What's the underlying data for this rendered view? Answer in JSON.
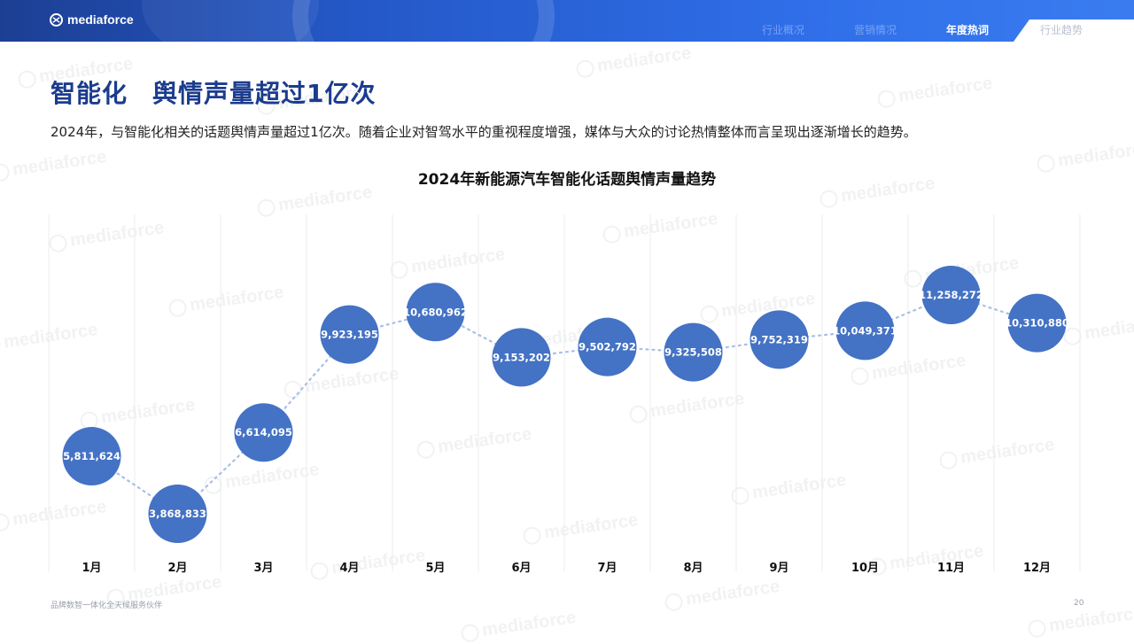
{
  "brand": {
    "logo_text": "mediaforce"
  },
  "nav": {
    "items": [
      {
        "label": "行业概况"
      },
      {
        "label": "营销情况"
      },
      {
        "label": "年度热词"
      },
      {
        "label": "行业趋势"
      }
    ],
    "active_index": 2
  },
  "page": {
    "title_part1": "智能化",
    "title_part2": "舆情声量超过1亿次",
    "subtitle": "2024年，与智能化相关的话题舆情声量超过1亿次。随着企业对智驾水平的重视程度增强，媒体与大众的讨论热情整体而言呈现出逐渐增长的趋势。"
  },
  "chart_data": {
    "type": "line",
    "title": "2024年新能源汽车智能化话题舆情声量趋势",
    "categories": [
      "1月",
      "2月",
      "3月",
      "4月",
      "5月",
      "6月",
      "7月",
      "8月",
      "9月",
      "10月",
      "11月",
      "12月"
    ],
    "values": [
      5811624,
      3868833,
      6614095,
      9923195,
      10680962,
      9153202,
      9502792,
      9325508,
      9752319,
      10049371,
      11258272,
      10310880
    ],
    "value_labels": [
      "5,811,624",
      "3,868,833",
      "6,614,095",
      "9,923,195",
      "10,680,962",
      "9,153,202",
      "9,502,792",
      "9,325,508",
      "9,752,319",
      "10,049,371",
      "11,258,272",
      "10,310,880"
    ],
    "marker_color": "#4472c4",
    "line_color": "#a9bfe6",
    "grid": "vertical",
    "legend": "none"
  },
  "footer": {
    "left": "品牌数智一体化全天候服务伙伴",
    "page_number": "20"
  }
}
